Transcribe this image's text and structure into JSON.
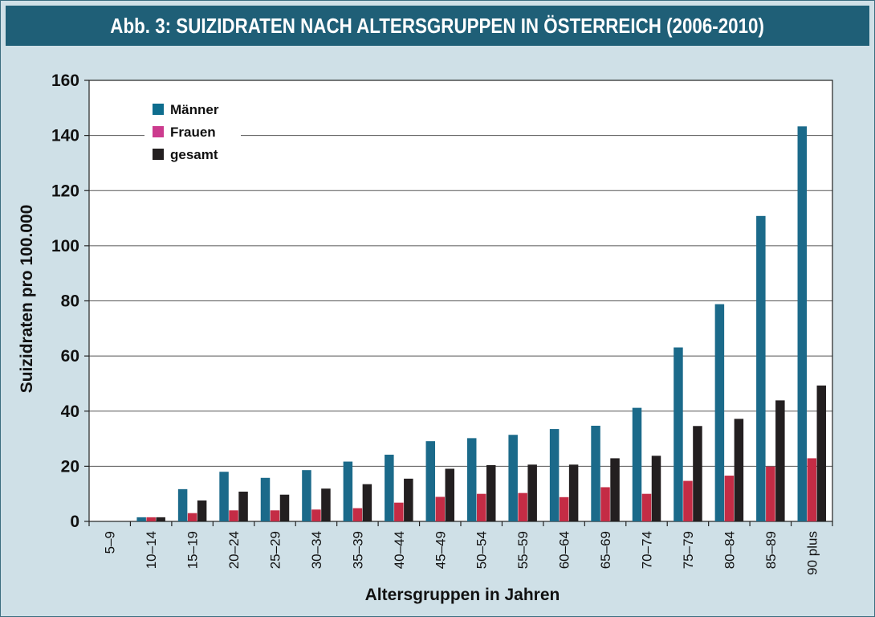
{
  "title": "Abb. 3: SUIZIDRATEN NACH ALTERSGRUPPEN IN ÖSTERREICH (2006-2010)",
  "chart_data": {
    "type": "bar",
    "categories": [
      "5–9",
      "10–14",
      "15–19",
      "20–24",
      "25–29",
      "30–34",
      "35–39",
      "40–44",
      "45–49",
      "50–54",
      "55–59",
      "60–64",
      "65–69",
      "70–74",
      "75–79",
      "80–84",
      "85–89",
      "90 plus"
    ],
    "series": [
      {
        "name": "Männer",
        "color": "#1b6a8a",
        "values": [
          0,
          1.5,
          11.7,
          18,
          15.8,
          18.6,
          21.7,
          24.2,
          29.1,
          30.2,
          31.4,
          33.5,
          34.7,
          41.2,
          63.1,
          78.8,
          110.8,
          143.3
        ]
      },
      {
        "name": "Frauen",
        "color": "#c42c45",
        "values": [
          0,
          1.5,
          3,
          4,
          4,
          4.3,
          4.8,
          6.8,
          8.9,
          10,
          10.3,
          8.8,
          12.4,
          10,
          14.7,
          16.6,
          19.9,
          22.9
        ]
      },
      {
        "name": "gesamt",
        "color": "#231f20",
        "values": [
          0,
          1.5,
          7.6,
          10.8,
          9.7,
          11.9,
          13.5,
          15.5,
          19.1,
          20.4,
          20.6,
          20.6,
          22.9,
          23.8,
          34.6,
          37.2,
          43.9,
          49.3
        ]
      }
    ],
    "legend_colors": [
      "#0e6d8e",
      "#cc3b8e",
      "#231f20"
    ],
    "xlabel": "Altersgruppen in Jahren",
    "ylabel": "Suizidraten pro 100.000",
    "ylim": [
      0,
      160
    ],
    "yticks": [
      "0",
      "20",
      "40",
      "60",
      "80",
      "100",
      "120",
      "140",
      "160"
    ],
    "grid": true,
    "legend_position": "top-left"
  }
}
